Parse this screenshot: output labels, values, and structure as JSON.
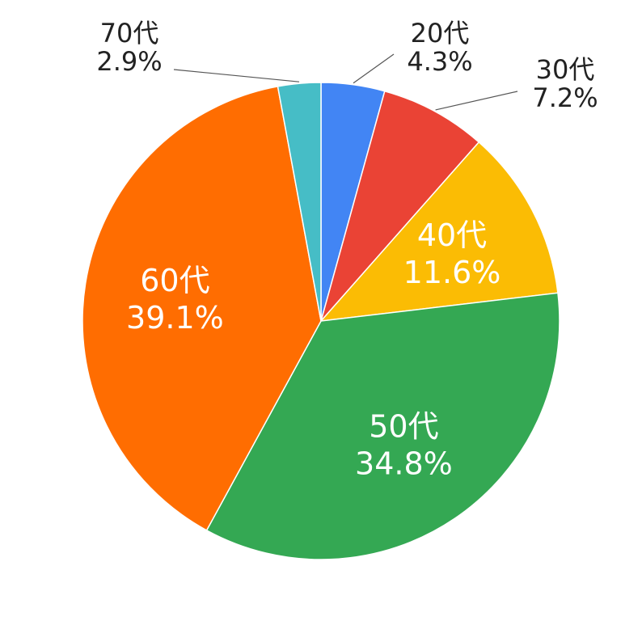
{
  "chart_data": {
    "type": "pie",
    "categories": [
      "20代",
      "30代",
      "40代",
      "50代",
      "60代",
      "70代"
    ],
    "values": [
      4.3,
      7.2,
      11.6,
      34.8,
      39.1,
      2.9
    ],
    "value_labels": [
      "4.3%",
      "7.2%",
      "11.6%",
      "34.8%",
      "39.1%",
      "2.9%"
    ],
    "colors": [
      "#4285F4",
      "#EA4335",
      "#FBBC04",
      "#34A853",
      "#FF6D01",
      "#46BDC6"
    ],
    "label_placement": [
      "outside",
      "outside",
      "inside",
      "inside",
      "inside",
      "outside"
    ],
    "start_angle": "top",
    "direction": "clockwise",
    "legend": "none"
  }
}
